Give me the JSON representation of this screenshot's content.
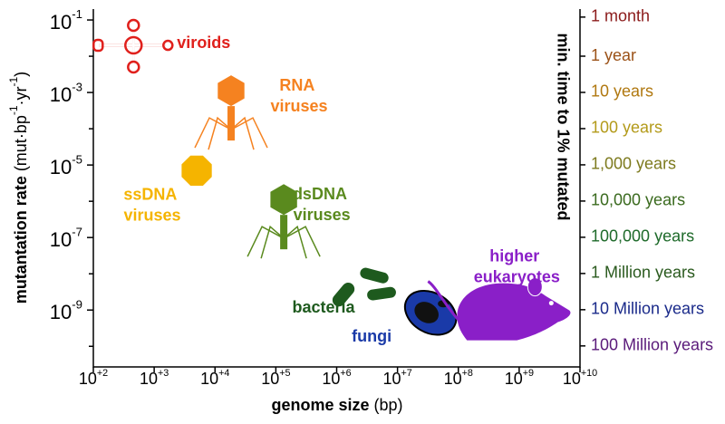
{
  "chart_data": {
    "type": "scatter",
    "xlabel": "genome size (bp)",
    "ylabel": "mutantation rate (mut·bp-1·yr-1)",
    "y2label": "min. time to 1% mutated",
    "xscale": "log",
    "yscale": "log",
    "y2scale": "log",
    "xlim": [
      100,
      10000000000
    ],
    "xticks": [
      {
        "value": 100,
        "label": "10+2"
      },
      {
        "value": 1000,
        "label": "10+3"
      },
      {
        "value": 10000,
        "label": "10+4"
      },
      {
        "value": 100000,
        "label": "10+5"
      },
      {
        "value": 1000000,
        "label": "10+6"
      },
      {
        "value": 10000000,
        "label": "10+7"
      },
      {
        "value": 100000000,
        "label": "10+8"
      },
      {
        "value": 1000000000,
        "label": "10+9"
      },
      {
        "value": 10000000000,
        "label": "10+10"
      }
    ],
    "ylim": [
      2.7e-11,
      0.2
    ],
    "yticks": [
      {
        "value": 0.1,
        "label": "10-1"
      },
      {
        "value": 0.001,
        "label": "10-3"
      },
      {
        "value": 1e-05,
        "label": "10-5"
      },
      {
        "value": 1e-07,
        "label": "10-7"
      },
      {
        "value": 1e-09,
        "label": "10-9"
      }
    ],
    "yminorticks": [
      0.01,
      0.0001,
      1e-06,
      1e-08,
      1e-10
    ],
    "y2lim": [
      380000000,
      0.05
    ],
    "y2ticks": [
      {
        "value": 0.0833,
        "label": "1 month",
        "color": "#8b1a1a"
      },
      {
        "value": 1,
        "label": "1 year",
        "color": "#9b5218"
      },
      {
        "value": 10,
        "label": "10 years",
        "color": "#b07810"
      },
      {
        "value": 100,
        "label": "100 years",
        "color": "#b39a1a"
      },
      {
        "value": 1000,
        "label": "1,000 years",
        "color": "#7d7a1e"
      },
      {
        "value": 10000,
        "label": "10,000 years",
        "color": "#3a6a1e"
      },
      {
        "value": 100000,
        "label": "100,000 years",
        "color": "#1e6a2a"
      },
      {
        "value": 1000000,
        "label": "1 Million years",
        "color": "#2a5a1e"
      },
      {
        "value": 10000000,
        "label": "10 Million years",
        "color": "#1a2a8a"
      },
      {
        "value": 100000000,
        "label": "100 Million years",
        "color": "#5a1a7a"
      }
    ],
    "series": [
      {
        "name": "viroids",
        "color": "#e0201c",
        "x": [
          457
        ],
        "values": [
          0.02
        ]
      },
      {
        "name": "RNA viruses",
        "color": "#f58220",
        "x": [
          18400
        ],
        "values": [
          0.000266
        ]
      },
      {
        "name": "ssDNA viruses",
        "color": "#f5b400",
        "x": [
          5000
        ],
        "values": [
          7e-06
        ]
      },
      {
        "name": "dsDNA viruses",
        "color": "#5a8a1e",
        "x": [
          135000
        ],
        "values": [
          2.66e-07
        ]
      },
      {
        "name": "bacteria",
        "color": "#1e5a1e",
        "x": [
          3160000
        ],
        "values": [
          4e-09
        ]
      },
      {
        "name": "fungi",
        "color": "#1a3aa8",
        "x": [
          35000000
        ],
        "values": [
          8.4e-10
        ]
      },
      {
        "name": "higher eukaryotes",
        "color": "#8a1fc8",
        "x": [
          650000000
        ],
        "values": [
          1.1e-09
        ]
      }
    ]
  }
}
